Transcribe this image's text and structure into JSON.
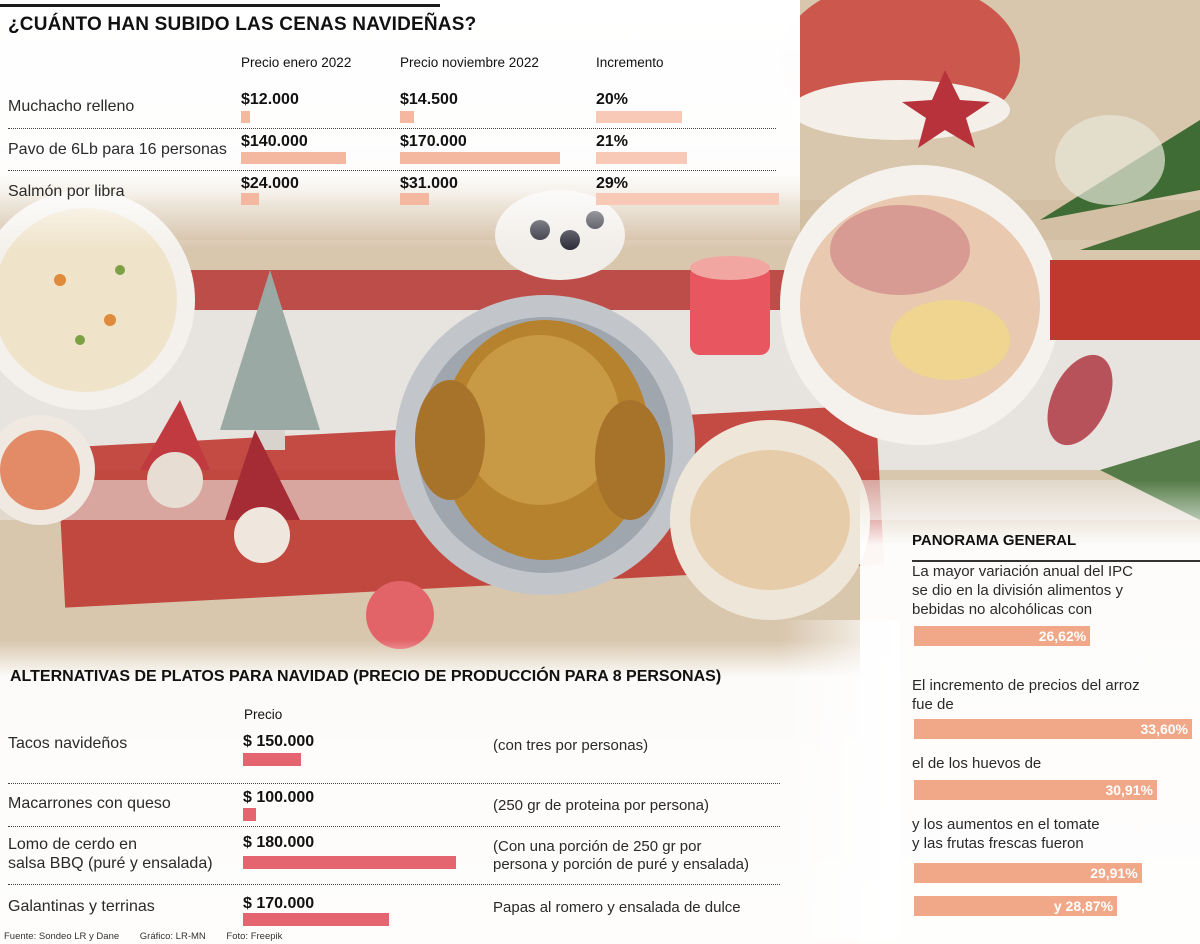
{
  "title": "¿CUÁNTO HAN SUBIDO LAS CENAS NAVIDEÑAS?",
  "table1": {
    "headers": [
      "Precio enero 2022",
      "Precio noviembre 2022",
      "Incremento"
    ],
    "rows": [
      {
        "label": "Muchacho relleno",
        "enero": "$12.000",
        "noviembre": "$14.500",
        "incremento": "20%"
      },
      {
        "label": "Pavo de 6Lb para 16 personas",
        "enero": "$140.000",
        "noviembre": "$170.000",
        "incremento": "21%"
      },
      {
        "label": "Salmón por libra",
        "enero": "$24.000",
        "noviembre": "$31.000",
        "incremento": "29%"
      }
    ]
  },
  "section2": {
    "title": "ALTERNATIVAS DE PLATOS PARA NAVIDAD (PRECIO DE PRODUCCIÓN PARA 8 PERSONAS)",
    "price_header": "Precio",
    "rows": [
      {
        "label": "Tacos navideños",
        "price": "$ 150.000",
        "note": "(con tres por personas)"
      },
      {
        "label": "Macarrones con queso",
        "price": "$ 100.000",
        "note": "(250 gr de proteina por persona)"
      },
      {
        "label": "Lomo de cerdo en",
        "label2": "salsa BBQ (puré y ensalada)",
        "price": "$ 180.000",
        "note": "(Con una porción de 250 gr por",
        "note2": "persona y porción de puré y ensalada)"
      },
      {
        "label": "Galantinas y terrinas",
        "price": "$ 170.000",
        "note": "Papas al romero y ensalada de dulce"
      }
    ]
  },
  "panorama": {
    "title": "PANORAMA GENERAL",
    "items": [
      {
        "text_lines": [
          "La mayor variación anual del IPC",
          "se dio en la división alimentos y",
          "bebidas no alcohólicas con"
        ],
        "value_label": "26,62%"
      },
      {
        "text_lines": [
          "El incremento de precios del arroz",
          "fue de"
        ],
        "value_label": "33,60%"
      },
      {
        "text_lines": [
          "el de los huevos de"
        ],
        "value_label": "30,91%"
      },
      {
        "text_lines": [
          "y los aumentos en el tomate",
          "y las frutas frescas fueron"
        ],
        "value_label": "29,91%"
      },
      {
        "text_lines": [],
        "value_label": "y 28,87%"
      }
    ]
  },
  "source": {
    "fuente": "Fuente: Sondeo LR y Dane",
    "grafico": "Gráfico: LR-MN",
    "foto": "Foto: Freepik"
  },
  "colors": {
    "peach_bar": "#f4b8a0",
    "red_bar": "#e46470",
    "panel_bar": "#f0a888"
  },
  "chart_data": [
    {
      "type": "bar",
      "title": "¿CUÁNTO HAN SUBIDO LAS CENAS NAVIDEÑAS?",
      "categories": [
        "Muchacho relleno",
        "Pavo de 6Lb para 16 personas",
        "Salmón por libra"
      ],
      "series": [
        {
          "name": "Precio enero 2022",
          "values": [
            12000,
            140000,
            24000
          ]
        },
        {
          "name": "Precio noviembre 2022",
          "values": [
            14500,
            170000,
            31000
          ]
        },
        {
          "name": "Incremento",
          "values": [
            20,
            21,
            29
          ]
        }
      ]
    },
    {
      "type": "bar",
      "title": "ALTERNATIVAS DE PLATOS PARA NAVIDAD (PRECIO DE PRODUCCIÓN PARA 8 PERSONAS)",
      "categories": [
        "Tacos navideños",
        "Macarrones con queso",
        "Lomo de cerdo en salsa BBQ (puré y ensalada)",
        "Galantinas y terrinas"
      ],
      "series": [
        {
          "name": "Precio",
          "values": [
            150000,
            100000,
            180000,
            170000
          ]
        }
      ]
    },
    {
      "type": "bar",
      "title": "PANORAMA GENERAL",
      "categories": [
        "alimentos y bebidas no alcohólicas",
        "arroz",
        "huevos",
        "tomate",
        "frutas frescas"
      ],
      "series": [
        {
          "values": [
            26.62,
            33.6,
            30.91,
            29.91,
            28.87
          ]
        }
      ]
    }
  ]
}
